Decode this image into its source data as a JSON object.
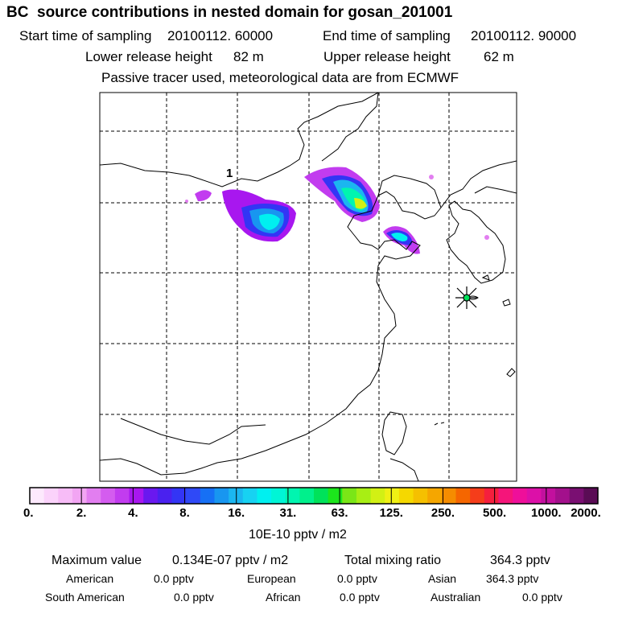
{
  "title": "BC  source contributions in nested domain for gosan_201001",
  "header": {
    "start_label": "Start time of sampling",
    "start_value": "20100112. 60000",
    "end_label": "End time of sampling",
    "end_value": "20100112. 90000",
    "lower_label": "Lower release height",
    "lower_value": "82 m",
    "upper_label": "Upper release height",
    "upper_value": "62 m",
    "tracer_note": "Passive tracer used, meteorological data are from ECMWF"
  },
  "map": {
    "annotation": "1",
    "receptor_marker": "star-marker",
    "colors": {
      "land_line": "#000000",
      "grid_line": "#000000",
      "frame": "#000000"
    }
  },
  "colorbar": {
    "swatches": [
      "#fde9fd",
      "#fbd3fb",
      "#f7bcf7",
      "#f2a5f3",
      "#e27ef0",
      "#d45cef",
      "#c23cef",
      "#a817ef",
      "#6a18ef",
      "#4a21ef",
      "#3335f5",
      "#2f49f7",
      "#1670f5",
      "#1896f0",
      "#1bb6f0",
      "#17d2f2",
      "#00f0f0",
      "#00f5d6",
      "#00f5b0",
      "#00f08c",
      "#00e25a",
      "#1ce61c",
      "#7ae617",
      "#a8ee14",
      "#d2f014",
      "#f0f014",
      "#f5d800",
      "#f5c000",
      "#f5a600",
      "#f58c00",
      "#f56600",
      "#f53d1a",
      "#f51f3d",
      "#f5157a",
      "#ef0f9a",
      "#dc10a8",
      "#c2109e",
      "#a3108c",
      "#7a0f72",
      "#5a0c55"
    ],
    "ticks": [
      "0.",
      "2.",
      "4.",
      "8.",
      "16.",
      "31.",
      "63.",
      "125.",
      "250.",
      "500.",
      "1000.",
      "2000."
    ],
    "unit_label": "10E-10 pptv / m2"
  },
  "summary": {
    "max_label": "Maximum value",
    "max_value": "0.134E-07 pptv / m2",
    "total_label": "Total mixing ratio",
    "total_value": "364.3 pptv",
    "regions": [
      {
        "name": "American",
        "value": "0.0 pptv"
      },
      {
        "name": "European",
        "value": "0.0 pptv"
      },
      {
        "name": "Asian",
        "value": "364.3 pptv"
      },
      {
        "name": "South American",
        "value": "0.0 pptv"
      },
      {
        "name": "African",
        "value": "0.0 pptv"
      },
      {
        "name": "Australian",
        "value": "0.0 pptv"
      }
    ]
  }
}
